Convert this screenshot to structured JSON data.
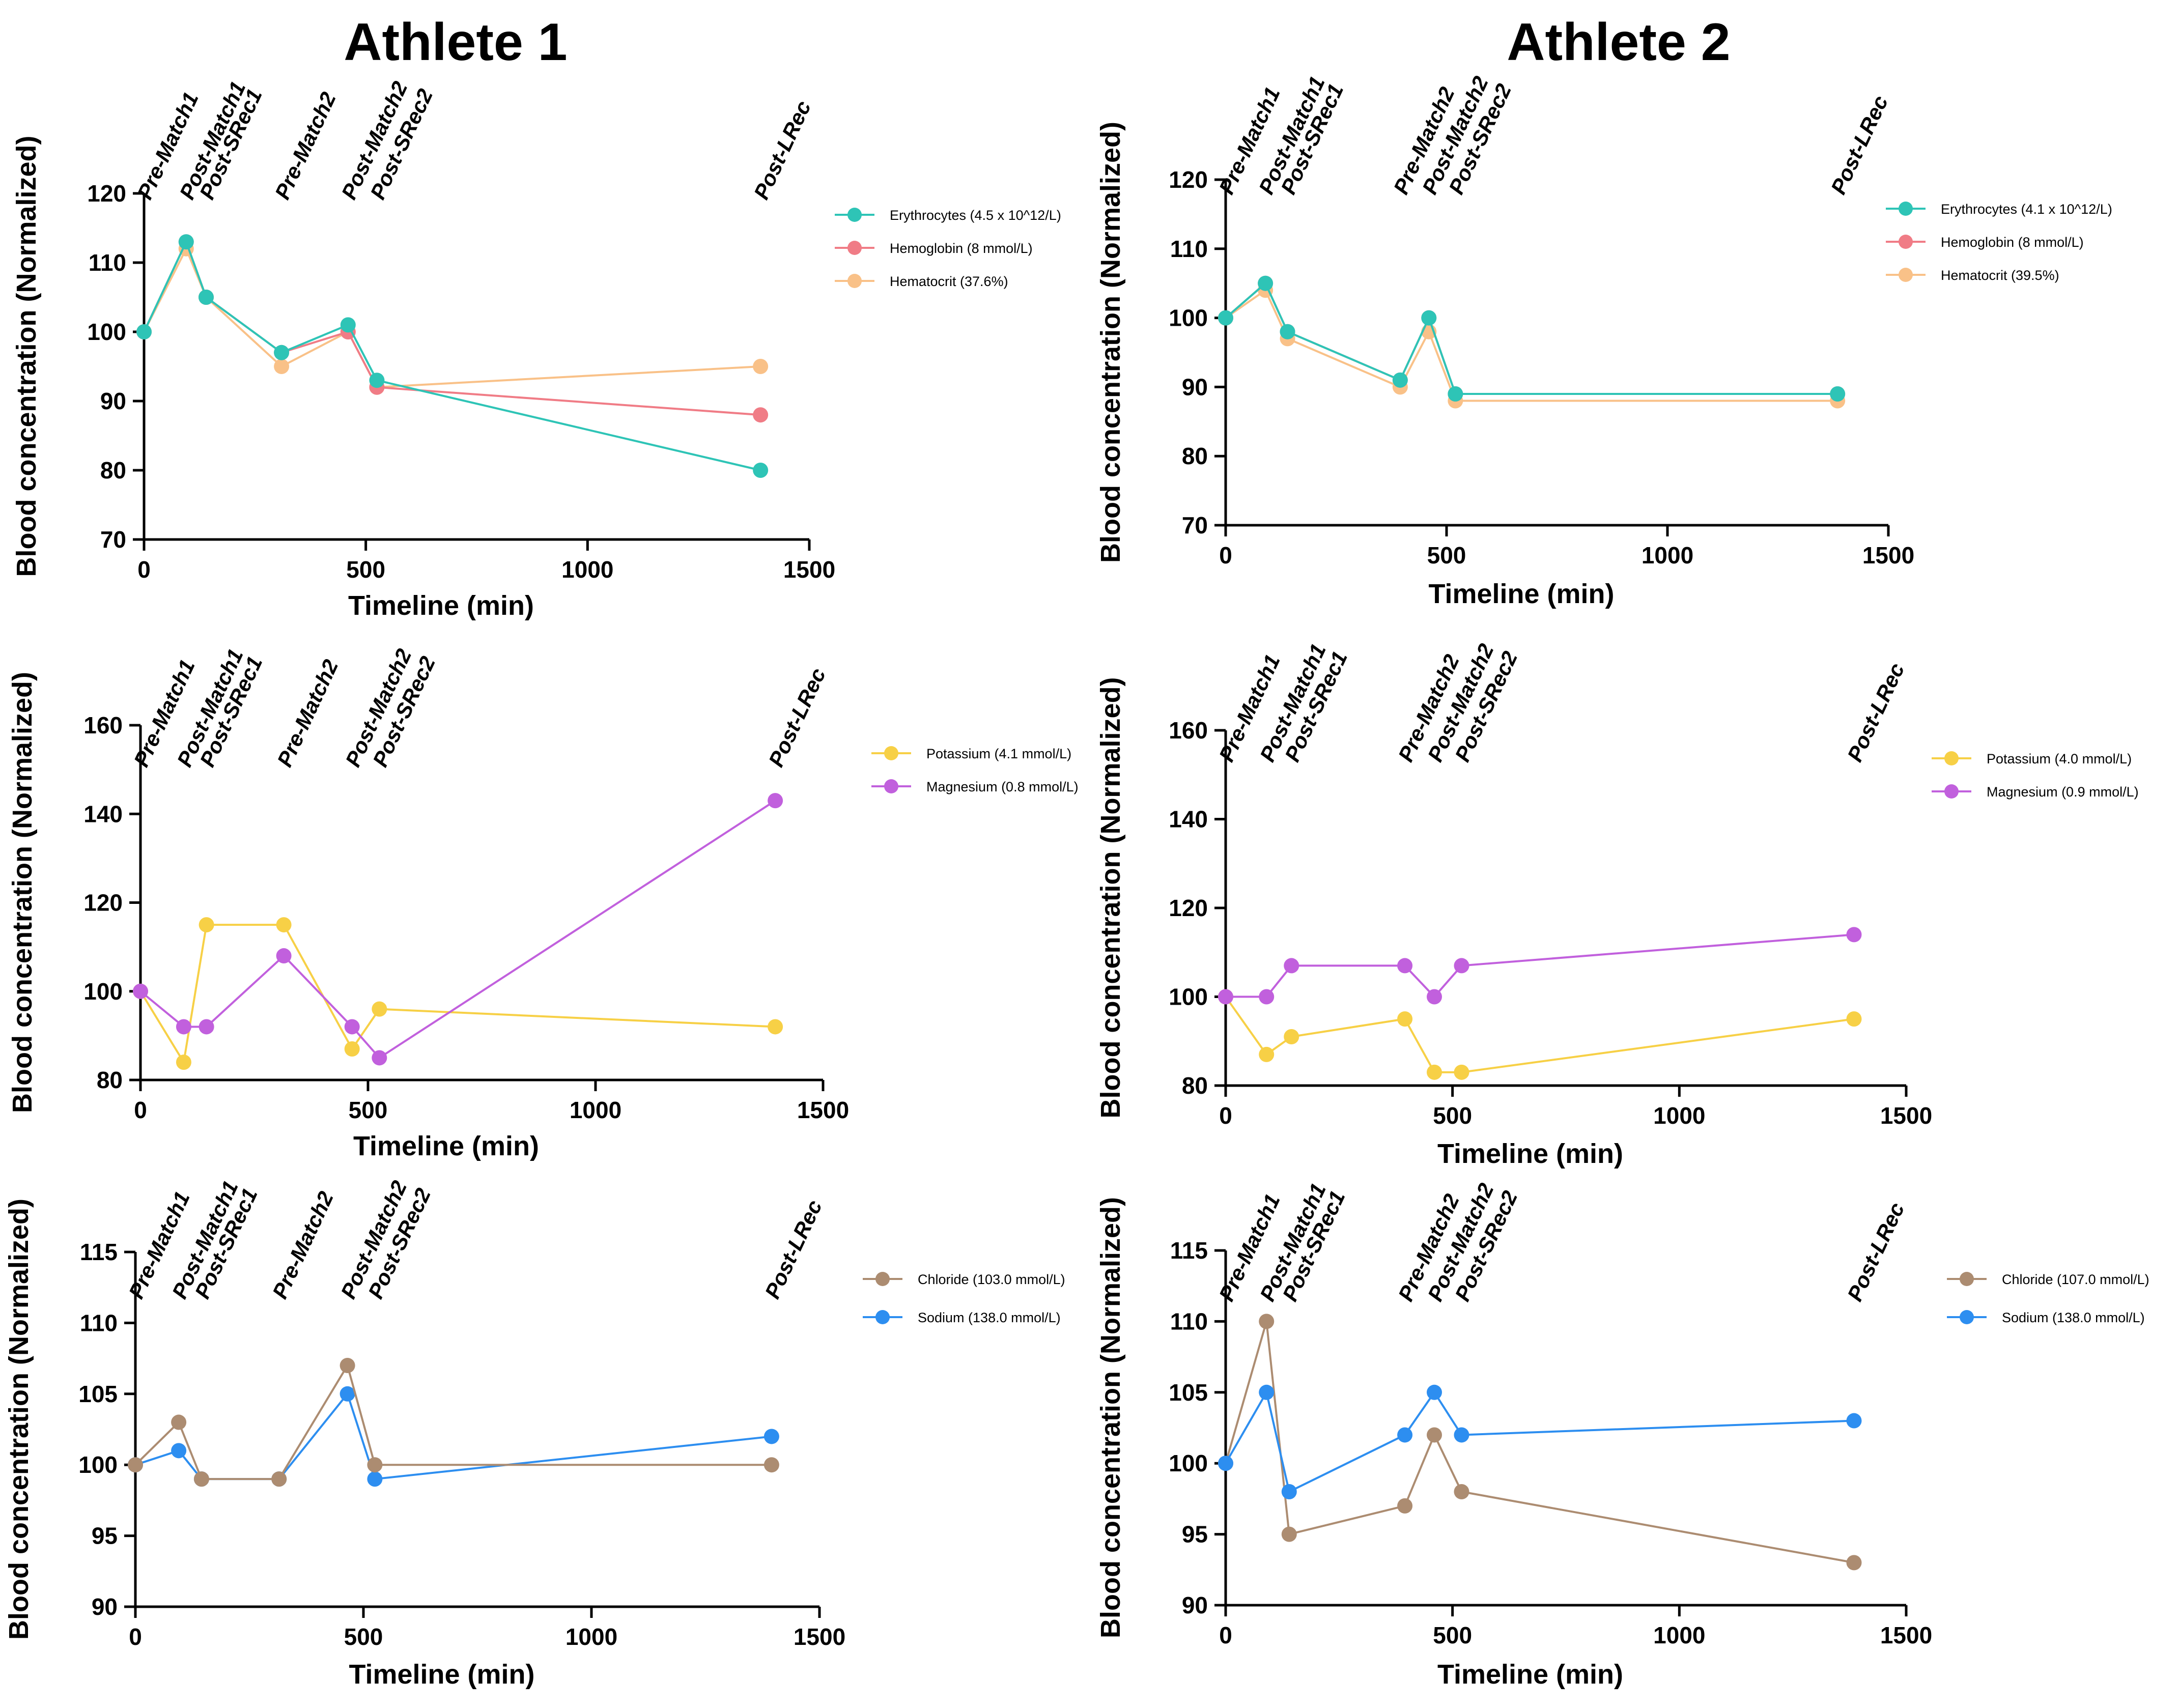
{
  "headers": [
    "Athlete 1",
    "Athlete 2"
  ],
  "timepoints": {
    "athlete1": [
      "Pre-Match1",
      "Post-Match1",
      "Post-SRec1",
      "Pre-Match2",
      "Post-Match2",
      "Post-SRec2",
      "Post-LRec"
    ],
    "athlete2": [
      "Pre-Match1",
      "Post-Match1",
      "Post-SRec1",
      "Pre-Match2",
      "Post-Match2",
      "Post-SRec2",
      "Post-LRec"
    ]
  },
  "colors": {
    "erythrocytes": "#2ec4b6",
    "hemoglobin": "#f07c86",
    "hematocrit": "#f9c188",
    "potassium": "#f7d046",
    "magnesium": "#c160dd",
    "chloride": "#ac8c71",
    "sodium": "#2d8ef0"
  },
  "chart_data": [
    {
      "id": "a1-blood-cells",
      "type": "line",
      "athlete": "Athlete 1",
      "xlabel": "Timeline (min)",
      "ylabel": "Blood concentration (Normalized)",
      "xlim": [
        0,
        1500
      ],
      "xticks": [
        0,
        500,
        1000,
        1500
      ],
      "ylim": [
        70,
        120
      ],
      "yticks": [
        70,
        80,
        90,
        100,
        110,
        120
      ],
      "timepoint_x": [
        0,
        95,
        140,
        310,
        460,
        525,
        1390
      ],
      "series": [
        {
          "name": "Hematocrit (37.6%)",
          "color_key": "hematocrit",
          "x": [
            0,
            95,
            140,
            310,
            460,
            525,
            1390
          ],
          "y": [
            100,
            112,
            105,
            95,
            100,
            92,
            95
          ]
        },
        {
          "name": "Hemoglobin (8 mmol/L)",
          "color_key": "hemoglobin",
          "x": [
            0,
            95,
            140,
            310,
            460,
            525,
            1390
          ],
          "y": [
            100,
            113,
            105,
            97,
            100,
            92,
            88
          ]
        },
        {
          "name": "Erythrocytes (4.5 x 10^12/L)",
          "color_key": "erythrocytes",
          "x": [
            0,
            95,
            140,
            310,
            460,
            525,
            1390
          ],
          "y": [
            100,
            113,
            105,
            97,
            101,
            93,
            80
          ]
        }
      ],
      "legend_order": [
        2,
        1,
        0
      ]
    },
    {
      "id": "a2-blood-cells",
      "type": "line",
      "athlete": "Athlete 2",
      "xlabel": "Timeline (min)",
      "ylabel": "Blood concentration (Normalized)",
      "xlim": [
        0,
        1500
      ],
      "xticks": [
        0,
        500,
        1000,
        1500
      ],
      "ylim": [
        70,
        120
      ],
      "yticks": [
        70,
        80,
        90,
        100,
        110,
        120
      ],
      "timepoint_x": [
        0,
        90,
        140,
        395,
        460,
        520,
        1385
      ],
      "series": [
        {
          "name": "Hematocrit (39.5%)",
          "color_key": "hematocrit",
          "x": [
            0,
            90,
            140,
            395,
            460,
            520,
            1385
          ],
          "y": [
            100,
            104,
            97,
            90,
            98,
            88,
            88
          ]
        },
        {
          "name": "Hemoglobin (8 mmol/L)",
          "color_key": "hemoglobin",
          "x": [
            0,
            90,
            140,
            395,
            460,
            520,
            1385
          ],
          "y": [
            100,
            105,
            98,
            91,
            100,
            89,
            89
          ]
        },
        {
          "name": "Erythrocytes (4.1 x 10^12/L)",
          "color_key": "erythrocytes",
          "x": [
            0,
            90,
            140,
            395,
            460,
            520,
            1385
          ],
          "y": [
            100,
            105,
            98,
            91,
            100,
            89,
            89
          ]
        }
      ],
      "legend_order": [
        2,
        1,
        0
      ]
    },
    {
      "id": "a1-electrolytes-km",
      "type": "line",
      "athlete": "Athlete 1",
      "xlabel": "Timeline (min)",
      "ylabel": "Blood concentration (Normalized)",
      "xlim": [
        0,
        1500
      ],
      "xticks": [
        0,
        500,
        1000,
        1500
      ],
      "ylim": [
        80,
        160
      ],
      "yticks": [
        80,
        100,
        120,
        140,
        160
      ],
      "timepoint_x": [
        0,
        95,
        145,
        315,
        465,
        525,
        1395
      ],
      "series": [
        {
          "name": "Potassium (4.1 mmol/L)",
          "color_key": "potassium",
          "x": [
            0,
            95,
            145,
            315,
            465,
            525,
            1395
          ],
          "y": [
            100,
            84,
            115,
            115,
            87,
            96,
            92
          ]
        },
        {
          "name": "Magnesium (0.8 mmol/L)",
          "color_key": "magnesium",
          "x": [
            0,
            95,
            145,
            315,
            465,
            525,
            1395
          ],
          "y": [
            100,
            92,
            92,
            108,
            92,
            85,
            143
          ]
        }
      ],
      "legend_order": [
        0,
        1
      ]
    },
    {
      "id": "a2-electrolytes-km",
      "type": "line",
      "athlete": "Athlete 2",
      "xlabel": "Timeline (min)",
      "ylabel": "Blood concentration (Normalized)",
      "xlim": [
        0,
        1500
      ],
      "xticks": [
        0,
        500,
        1000,
        1500
      ],
      "ylim": [
        80,
        160
      ],
      "yticks": [
        80,
        100,
        120,
        140,
        160
      ],
      "timepoint_x": [
        0,
        90,
        145,
        395,
        460,
        520,
        1385
      ],
      "series": [
        {
          "name": "Potassium (4.0 mmol/L)",
          "color_key": "potassium",
          "x": [
            0,
            90,
            145,
            395,
            460,
            520,
            1385
          ],
          "y": [
            100,
            87,
            91,
            95,
            83,
            83,
            95
          ]
        },
        {
          "name": "Magnesium (0.9 mmol/L)",
          "color_key": "magnesium",
          "x": [
            0,
            90,
            145,
            395,
            460,
            520,
            1385
          ],
          "y": [
            100,
            100,
            107,
            107,
            100,
            107,
            114
          ]
        }
      ],
      "legend_order": [
        0,
        1
      ]
    },
    {
      "id": "a1-electrolytes-nacl",
      "type": "line",
      "athlete": "Athlete 1",
      "xlabel": "Timeline (min)",
      "ylabel": "Blood concentration (Normalized)",
      "xlim": [
        0,
        1500
      ],
      "xticks": [
        0,
        500,
        1000,
        1500
      ],
      "ylim": [
        90,
        115
      ],
      "yticks": [
        90,
        95,
        100,
        105,
        110,
        115
      ],
      "timepoint_x": [
        0,
        95,
        145,
        315,
        465,
        525,
        1395
      ],
      "series": [
        {
          "name": "Sodium (138.0 mmol/L)",
          "color_key": "sodium",
          "x": [
            0,
            95,
            145,
            315,
            465,
            525,
            1395
          ],
          "y": [
            100,
            101,
            99,
            99,
            105,
            99,
            102
          ]
        },
        {
          "name": "Chloride (103.0 mmol/L)",
          "color_key": "chloride",
          "x": [
            0,
            95,
            145,
            315,
            465,
            525,
            1395
          ],
          "y": [
            100,
            103,
            99,
            99,
            107,
            100,
            100
          ]
        }
      ],
      "legend_order": [
        1,
        0
      ]
    },
    {
      "id": "a2-electrolytes-nacl",
      "type": "line",
      "athlete": "Athlete 2",
      "xlabel": "Timeline (min)",
      "ylabel": "Blood concentration (Normalized)",
      "xlim": [
        0,
        1500
      ],
      "xticks": [
        0,
        500,
        1000,
        1500
      ],
      "ylim": [
        90,
        115
      ],
      "yticks": [
        90,
        95,
        100,
        105,
        110,
        115
      ],
      "timepoint_x": [
        0,
        90,
        140,
        395,
        460,
        520,
        1385
      ],
      "series": [
        {
          "name": "Chloride (107.0 mmol/L)",
          "color_key": "chloride",
          "x": [
            0,
            90,
            140,
            395,
            460,
            520,
            1385
          ],
          "y": [
            100,
            110,
            95,
            97,
            102,
            98,
            93
          ]
        },
        {
          "name": "Sodium (138.0 mmol/L)",
          "color_key": "sodium",
          "x": [
            0,
            90,
            140,
            395,
            460,
            520,
            1385
          ],
          "y": [
            100,
            105,
            98,
            102,
            105,
            102,
            103
          ]
        }
      ],
      "legend_order": [
        0,
        1
      ]
    }
  ]
}
